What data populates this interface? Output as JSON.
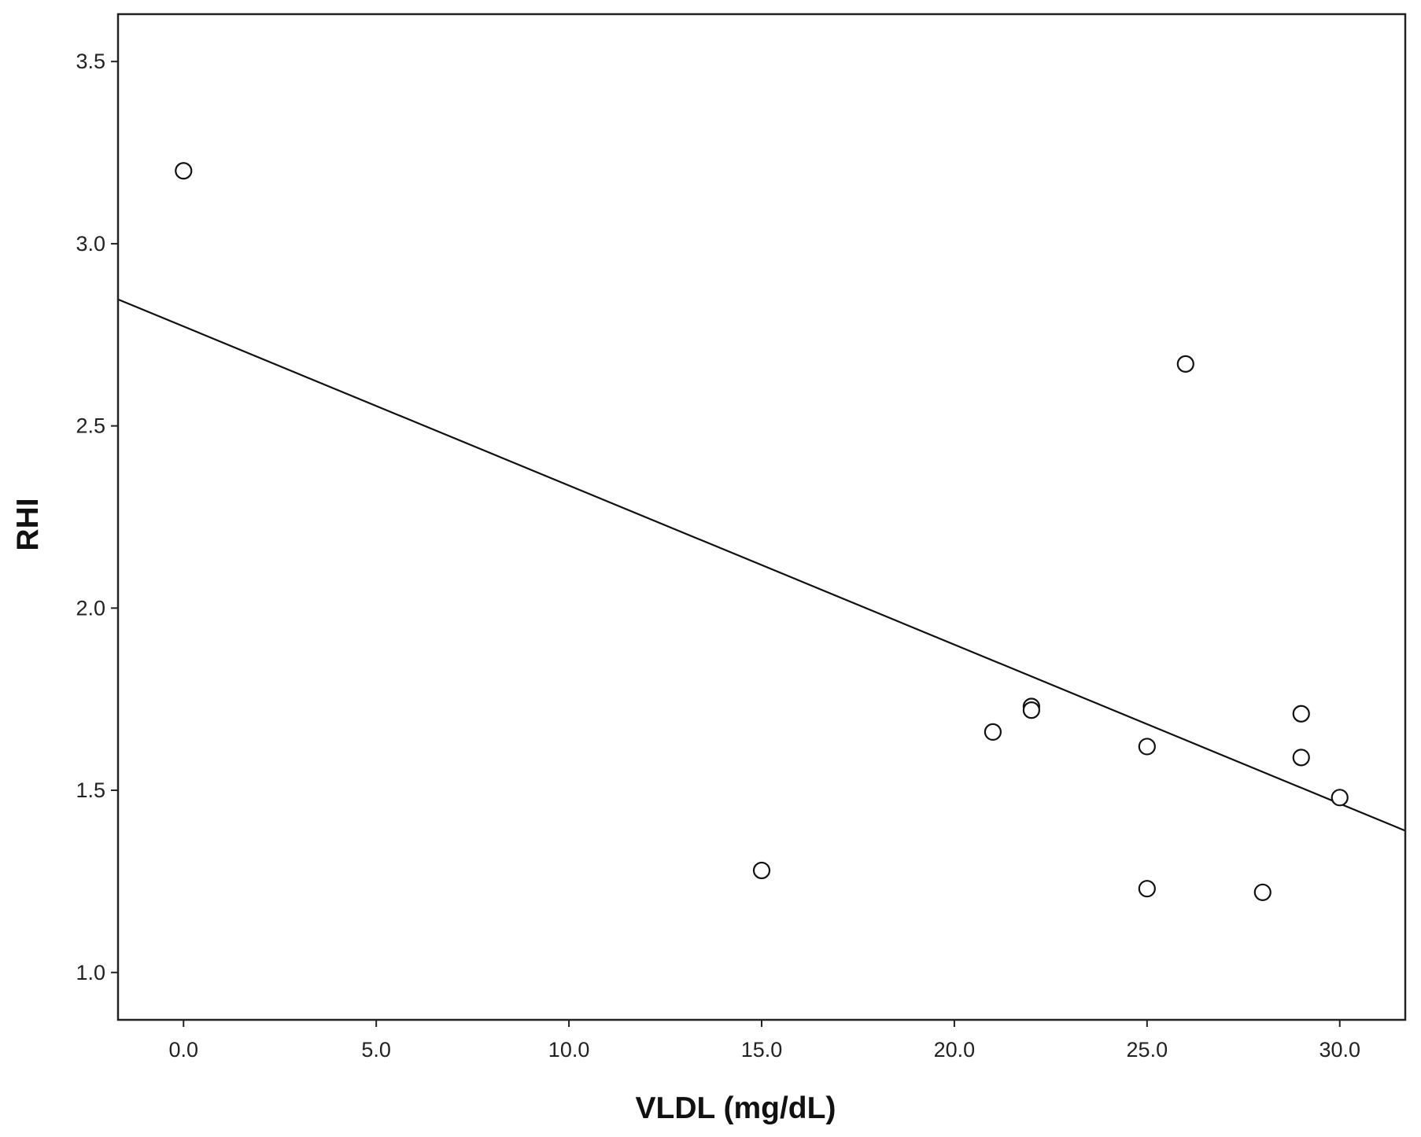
{
  "chart_data": {
    "type": "scatter",
    "title": "",
    "xlabel": "VLDL (mg/dL)",
    "ylabel": "RHI",
    "xlim": [
      -1.7,
      31.7
    ],
    "ylim": [
      0.87,
      3.63
    ],
    "x_ticks": [
      0.0,
      5.0,
      10.0,
      15.0,
      20.0,
      25.0,
      30.0
    ],
    "x_tick_labels": [
      "0.0",
      "5.0",
      "10.0",
      "15.0",
      "20.0",
      "25.0",
      "30.0"
    ],
    "y_ticks": [
      1.0,
      1.5,
      2.0,
      2.5,
      3.0,
      3.5
    ],
    "y_tick_labels": [
      "1.0",
      "1.5",
      "2.0",
      "2.5",
      "3.0",
      "3.5"
    ],
    "grid": false,
    "legend": "none",
    "series": [
      {
        "points": [
          {
            "x": 0.0,
            "y": 3.2
          },
          {
            "x": 15.0,
            "y": 1.28
          },
          {
            "x": 21.0,
            "y": 1.66
          },
          {
            "x": 22.0,
            "y": 1.73
          },
          {
            "x": 22.0,
            "y": 1.72
          },
          {
            "x": 25.0,
            "y": 1.62
          },
          {
            "x": 25.0,
            "y": 1.23
          },
          {
            "x": 26.0,
            "y": 2.67
          },
          {
            "x": 28.0,
            "y": 1.22
          },
          {
            "x": 29.0,
            "y": 1.71
          },
          {
            "x": 29.0,
            "y": 1.59
          },
          {
            "x": 30.0,
            "y": 1.48
          }
        ]
      }
    ],
    "fit_line": {
      "type": "linear",
      "intercept": 2.773,
      "slope": -0.04366
    },
    "colors": {
      "marker_stroke": "#111111",
      "marker_fill": "#ffffff",
      "line": "#111111",
      "frame": "#222222",
      "background": "#ffffff"
    }
  }
}
